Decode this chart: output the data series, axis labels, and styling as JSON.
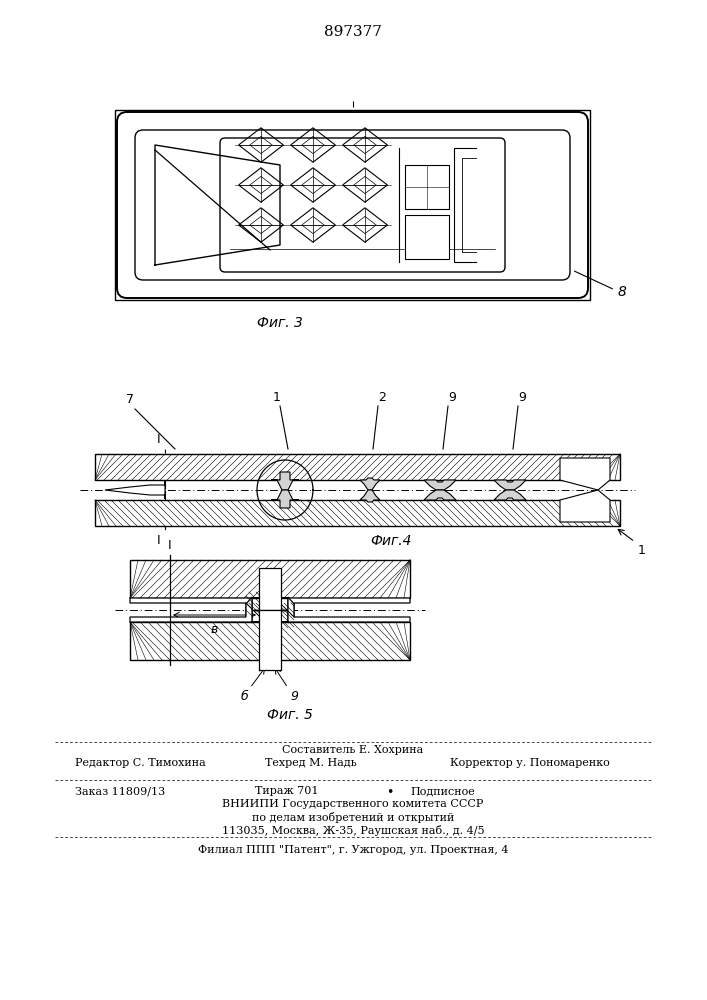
{
  "patent_number": "897377",
  "bg_color": "#ffffff",
  "line_color": "#000000",
  "fig3_caption": "Фиг. 3",
  "fig4_caption": "Фиг.4",
  "fig5_caption": "Фиг. 5",
  "label_8": "8",
  "label_7": "7",
  "label_1": "1",
  "label_2": "2",
  "label_9a": "9",
  "label_9b": "9",
  "label_1b": "1",
  "label_I": "I",
  "label_I2": "I",
  "label_b": "б",
  "label_v": "в",
  "label_9c": "9",
  "editor_line": "Редактор С. Тимохина",
  "composer_line": "Составитель Е. Хохрина",
  "techred_line": "Техред М. Надь",
  "corrector_line": "Корректор у. Пономаренко",
  "order_line": "Заказ 11809/13",
  "tirazh_line": "Тираж 701",
  "podpisnoe_line": "Подписное",
  "vniiipi_line": "ВНИИПИ Государственного комитета СССР",
  "izobret_line": "по делам изобретений и открытий",
  "address_line": "113035, Москва, Ж-35, Раушская наб., д. 4/5",
  "filial_line": "Филиал ППП \"Патент\", г. Ужгород, ул. Проектная, 4"
}
